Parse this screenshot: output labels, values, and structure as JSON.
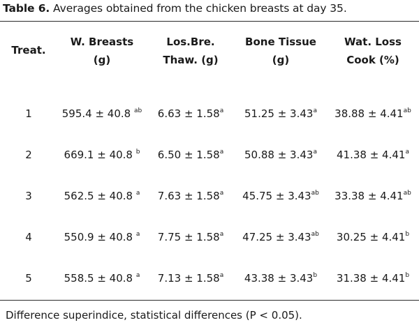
{
  "caption": {
    "label": "Table 6.",
    "text": " Averages obtained from the chicken breasts at day 35."
  },
  "table": {
    "headers": [
      {
        "line1": "Treat.",
        "line2": ""
      },
      {
        "line1": "W. Breasts",
        "line2": "(g)"
      },
      {
        "line1": "Los.Bre.",
        "line2": "Thaw. (g)"
      },
      {
        "line1": "Bone Tissue",
        "line2": "(g)"
      },
      {
        "line1": "Wat. Loss",
        "line2": "Cook (%)"
      }
    ],
    "rows": [
      {
        "treat": "1",
        "breasts": {
          "value": "595.4 ± 40.8 ",
          "sup": "ab"
        },
        "thaw": {
          "value": "6.63 ± 1.58",
          "sup": "a"
        },
        "bone": {
          "value": "51.25 ± 3.43",
          "sup": "a"
        },
        "cook": {
          "value": "38.88 ± 4.41",
          "sup": "ab"
        }
      },
      {
        "treat": "2",
        "breasts": {
          "value": "669.1 ± 40.8 ",
          "sup": "b"
        },
        "thaw": {
          "value": "6.50 ± 1.58",
          "sup": "a"
        },
        "bone": {
          "value": "50.88 ± 3.43",
          "sup": "a"
        },
        "cook": {
          "value": "41.38 ± 4.41",
          "sup": "a"
        }
      },
      {
        "treat": "3",
        "breasts": {
          "value": "562.5 ± 40.8 ",
          "sup": "a"
        },
        "thaw": {
          "value": "7.63 ± 1.58",
          "sup": "a"
        },
        "bone": {
          "value": "45.75 ± 3.43",
          "sup": "ab"
        },
        "cook": {
          "value": "33.38 ± 4.41",
          "sup": "ab"
        }
      },
      {
        "treat": "4",
        "breasts": {
          "value": "550.9 ± 40.8 ",
          "sup": "a"
        },
        "thaw": {
          "value": "7.75 ± 1.58",
          "sup": "a"
        },
        "bone": {
          "value": "47.25 ± 3.43",
          "sup": "ab"
        },
        "cook": {
          "value": "30.25 ± 4.41",
          "sup": "b"
        }
      },
      {
        "treat": "5",
        "breasts": {
          "value": "558.5 ± 40.8 ",
          "sup": "a"
        },
        "thaw": {
          "value": "7.13 ± 1.58",
          "sup": "a"
        },
        "bone": {
          "value": "43.38 ± 3.43",
          "sup": "b"
        },
        "cook": {
          "value": "31.38 ± 4.41",
          "sup": "b"
        }
      }
    ]
  },
  "footnote": "Difference superindice, statistical differences (P < 0.05)."
}
